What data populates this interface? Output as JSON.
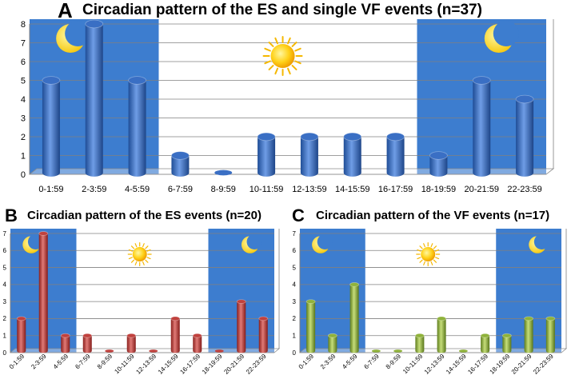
{
  "chart_data": [
    {
      "type": "bar",
      "panel_letter": "A",
      "title": "Circadian pattern of the ES and single VF events (n=37)",
      "categories": [
        "0-1:59",
        "2-3:59",
        "4-5:59",
        "6-7:59",
        "8-9:59",
        "10-11:59",
        "12-13:59",
        "14-15:59",
        "16-17:59",
        "18-19:59",
        "20-21:59",
        "22-23:59"
      ],
      "values": [
        5,
        8,
        5,
        1,
        0,
        2,
        2,
        2,
        2,
        1,
        5,
        4
      ],
      "yticks": [
        "0",
        "1",
        "2",
        "3",
        "4",
        "5",
        "6",
        "7",
        "8"
      ],
      "ylim": [
        0,
        8
      ],
      "bar_color": "#3a6fc4",
      "night_color": "#3d7dcf",
      "night_ranges": [
        [
          0,
          2
        ],
        [
          9,
          11
        ]
      ],
      "icons": [
        "moon-icon",
        "sun-icon",
        "moon-icon"
      ],
      "grid": true
    },
    {
      "type": "bar",
      "panel_letter": "B",
      "title": "Circadian pattern of the ES events (n=20)",
      "categories": [
        "0-1:59",
        "2-3:59",
        "4-5:59",
        "6-7:59",
        "8-9:59",
        "10-11:59",
        "12-13:59",
        "14-15:59",
        "16-17:59",
        "18-19:59",
        "20-21:59",
        "22-23:59"
      ],
      "values": [
        2,
        7,
        1,
        1,
        0,
        1,
        0,
        2,
        1,
        0,
        3,
        2
      ],
      "yticks": [
        "0",
        "1",
        "2",
        "3",
        "4",
        "5",
        "6",
        "7"
      ],
      "ylim": [
        0,
        7
      ],
      "bar_color": "#c0413d",
      "night_color": "#3d7dcf",
      "night_ranges": [
        [
          0,
          2
        ],
        [
          9,
          11
        ]
      ],
      "icons": [
        "moon-icon",
        "sun-icon",
        "moon-icon"
      ],
      "grid": true
    },
    {
      "type": "bar",
      "panel_letter": "C",
      "title": "Circadian pattern of the VF events (n=17)",
      "categories": [
        "0-1:59",
        "2-3:59",
        "4-5:59",
        "6-7:59",
        "8-9:59",
        "10-11:59",
        "12-13:59",
        "14-15:59",
        "16-17:59",
        "18-19:59",
        "20-21:59",
        "22-23:59"
      ],
      "values": [
        3,
        1,
        4,
        0,
        0,
        1,
        2,
        0,
        1,
        1,
        2,
        2
      ],
      "yticks": [
        "0",
        "1",
        "2",
        "3",
        "4",
        "5",
        "6",
        "7"
      ],
      "ylim": [
        0,
        7
      ],
      "bar_color": "#8fb23a",
      "night_color": "#3d7dcf",
      "night_ranges": [
        [
          0,
          2
        ],
        [
          9,
          11
        ]
      ],
      "icons": [
        "moon-icon",
        "sun-icon",
        "moon-icon"
      ],
      "grid": true
    }
  ]
}
